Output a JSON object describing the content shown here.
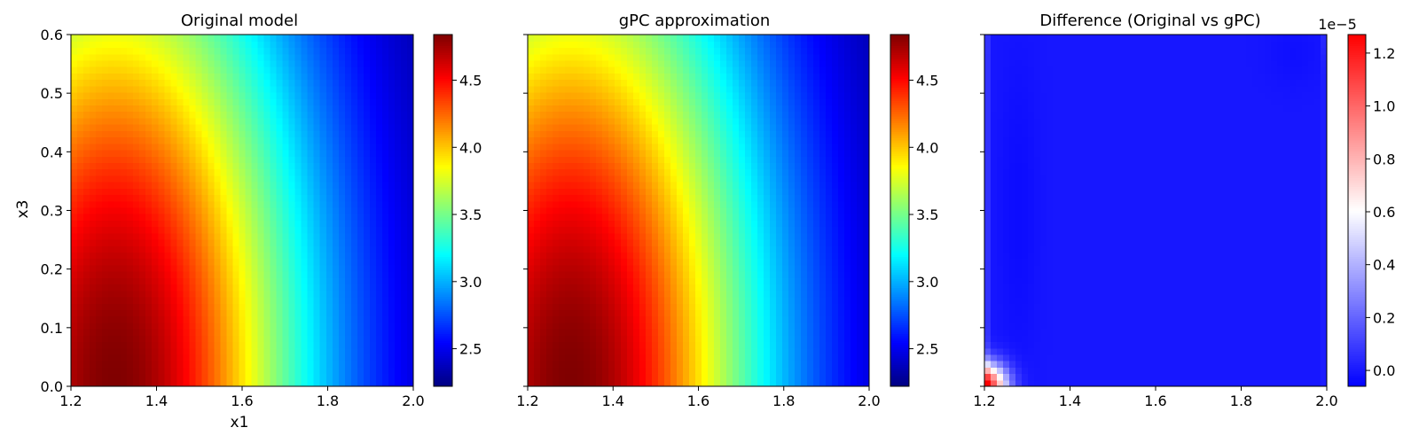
{
  "chart_data": [
    {
      "type": "heatmap",
      "title": "Original model",
      "xlabel": "x1",
      "ylabel": "x3",
      "xlim": [
        1.2,
        2.0
      ],
      "ylim": [
        0.0,
        0.6
      ],
      "x_ticks": [
        "1.2",
        "1.4",
        "1.6",
        "1.8",
        "2.0"
      ],
      "y_ticks": [
        "0.0",
        "0.1",
        "0.2",
        "0.3",
        "0.4",
        "0.5",
        "0.6"
      ],
      "colormap": "jet",
      "colorbar": {
        "range": [
          2.22,
          4.84
        ],
        "ticks": [
          "2.5",
          "3.0",
          "3.5",
          "4.0",
          "4.5"
        ],
        "exponent_label": ""
      },
      "grid": {
        "nx": 55,
        "ny": 55
      },
      "value_samples": {
        "x": [
          1.2,
          1.3,
          1.4,
          1.6,
          1.8,
          2.0
        ],
        "y": [
          0.05,
          0.3,
          0.6
        ],
        "min": 2.22,
        "max": 4.84
      }
    },
    {
      "type": "heatmap",
      "title": "gPC approximation",
      "xlabel": "",
      "ylabel": "",
      "xlim": [
        1.2,
        2.0
      ],
      "ylim": [
        0.0,
        0.6
      ],
      "x_ticks": [
        "1.2",
        "1.4",
        "1.6",
        "1.8",
        "2.0"
      ],
      "y_ticks": [],
      "colormap": "jet",
      "colorbar": {
        "range": [
          2.22,
          4.84
        ],
        "ticks": [
          "2.5",
          "3.0",
          "3.5",
          "4.0",
          "4.5"
        ],
        "exponent_label": ""
      },
      "grid": {
        "nx": 55,
        "ny": 55
      }
    },
    {
      "type": "heatmap",
      "title": "Difference (Original vs gPC)",
      "xlabel": "",
      "ylabel": "",
      "xlim": [
        1.2,
        2.0
      ],
      "ylim": [
        0.0,
        0.6
      ],
      "x_ticks": [
        "1.2",
        "1.4",
        "1.6",
        "1.8",
        "2.0"
      ],
      "y_ticks": [],
      "colormap": "bwr",
      "colorbar": {
        "range": [
          -0.06,
          1.27
        ],
        "ticks": [
          "0.0",
          "0.2",
          "0.4",
          "0.6",
          "0.8",
          "1.0",
          "1.2"
        ],
        "exponent_label": "1e−5"
      },
      "grid": {
        "nx": 55,
        "ny": 55
      },
      "value_samples": {
        "max_at_corner": [
          1.2,
          0.0
        ],
        "max": 1.27,
        "interior": -0.02
      }
    }
  ],
  "colors": {
    "background": "#ffffff",
    "axis": "#000000"
  }
}
